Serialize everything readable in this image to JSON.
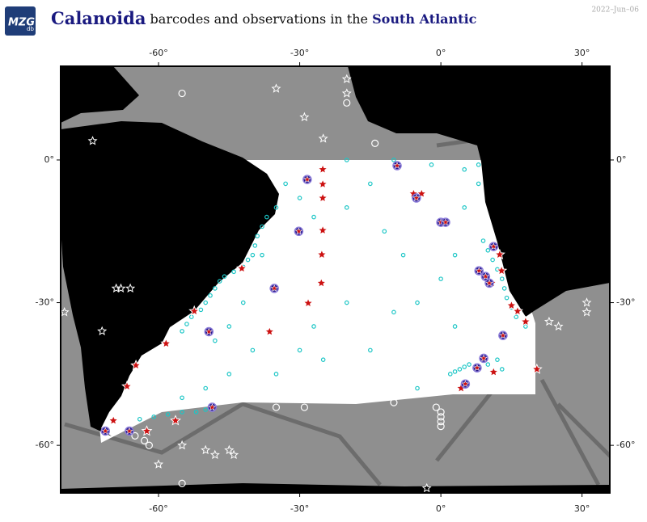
{
  "logo": {
    "main": "MZG",
    "sub": "db"
  },
  "date": "2022–Jun–06",
  "title": {
    "taxon": "Calanoida",
    "text": "barcodes and observations in the",
    "region": "South Atlantic"
  },
  "map": {
    "xlim": [
      -80.8,
      35.9
    ],
    "ylim": [
      -70,
      19.7
    ],
    "xticks": [
      {
        "value": -60,
        "label": "-60°"
      },
      {
        "value": -30,
        "label": "-30°"
      },
      {
        "value": 0,
        "label": "0°"
      },
      {
        "value": 30,
        "label": "30°"
      }
    ],
    "yticks": [
      {
        "value": 0,
        "label": "0°"
      },
      {
        "value": -30,
        "label": "-30°"
      },
      {
        "value": -60,
        "label": "-60°"
      }
    ],
    "point_sets": [
      {
        "shape": "circle",
        "fill": "none",
        "stroke": "#1cc6c6",
        "size": 2.2,
        "points": [
          [
            -37,
            -12
          ],
          [
            -38,
            -14
          ],
          [
            -39,
            -16
          ],
          [
            -39.5,
            -18
          ],
          [
            -40,
            -20
          ],
          [
            -41,
            -21
          ],
          [
            -42,
            -22.5
          ],
          [
            -44,
            -23.5
          ],
          [
            -46,
            -24.5
          ],
          [
            -47,
            -25.5
          ],
          [
            -48,
            -27
          ],
          [
            -49,
            -28.5
          ],
          [
            -50,
            -30
          ],
          [
            -51,
            -31.5
          ],
          [
            -53,
            -33
          ],
          [
            -54,
            -34.5
          ],
          [
            -55,
            -36
          ],
          [
            -33,
            -5
          ],
          [
            -30,
            -8
          ],
          [
            -27,
            -12
          ],
          [
            -20,
            -10
          ],
          [
            -15,
            -5
          ],
          [
            -12,
            -15
          ],
          [
            -8,
            -20
          ],
          [
            -5,
            -30
          ],
          [
            0,
            -25
          ],
          [
            3,
            -35
          ],
          [
            -10,
            -32
          ],
          [
            -20,
            -30
          ],
          [
            -27,
            -35
          ],
          [
            -30,
            -40
          ],
          [
            -35,
            -45
          ],
          [
            -40,
            -40
          ],
          [
            -45,
            -45
          ],
          [
            -50,
            -48
          ],
          [
            -55,
            -50
          ],
          [
            -45,
            -35
          ],
          [
            -42,
            -30
          ],
          [
            -38,
            -20
          ],
          [
            -48,
            -38
          ],
          [
            5,
            -10
          ],
          [
            8,
            -5
          ],
          [
            3,
            -20
          ],
          [
            -15,
            -40
          ],
          [
            -25,
            -42
          ],
          [
            -35,
            -10
          ],
          [
            -5,
            -48
          ],
          [
            2,
            -45
          ],
          [
            3,
            -44.5
          ],
          [
            4,
            -44
          ],
          [
            5,
            -43.5
          ],
          [
            6,
            -43
          ],
          [
            8,
            -44
          ],
          [
            10,
            -43
          ],
          [
            12,
            -42
          ],
          [
            13,
            -44
          ],
          [
            -55,
            -53
          ],
          [
            -58,
            -53.5
          ],
          [
            -61,
            -54
          ],
          [
            -64,
            -54.5
          ],
          [
            -50,
            -52.5
          ],
          [
            -52,
            -53
          ],
          [
            9,
            -17
          ],
          [
            10,
            -19
          ],
          [
            11,
            -21
          ],
          [
            12,
            -23
          ],
          [
            13,
            -25
          ],
          [
            13.5,
            -27
          ],
          [
            14,
            -29
          ],
          [
            15,
            -31
          ],
          [
            16,
            -33
          ],
          [
            18,
            -35
          ],
          [
            -20,
            0
          ],
          [
            -10,
            0
          ],
          [
            -2,
            -1
          ],
          [
            5,
            -2
          ],
          [
            8,
            -1
          ]
        ]
      },
      {
        "shape": "star",
        "fill": "none",
        "stroke": "#ffffff",
        "size": 5,
        "points": [
          [
            -74,
            4
          ],
          [
            -68,
            -27
          ],
          [
            -69,
            -27
          ],
          [
            -66,
            -27
          ],
          [
            -72,
            -36
          ],
          [
            -20,
            17
          ],
          [
            -29,
            9
          ],
          [
            -35,
            15
          ],
          [
            -25,
            4.5
          ],
          [
            -14,
            -3
          ],
          [
            -20,
            14
          ],
          [
            -55,
            -60
          ],
          [
            -50,
            -61
          ],
          [
            -48,
            -62
          ],
          [
            -44,
            -62
          ],
          [
            -45,
            -61
          ],
          [
            -60,
            -64
          ],
          [
            -3,
            -69
          ],
          [
            23,
            -34
          ],
          [
            25,
            -35
          ],
          [
            31,
            -30
          ],
          [
            31,
            -32
          ],
          [
            -80,
            -32
          ],
          [
            19,
            -47
          ]
        ]
      },
      {
        "shape": "circle",
        "fill": "none",
        "stroke": "#ffffff",
        "size": 4,
        "points": [
          [
            -55,
            14
          ],
          [
            -14,
            3.5
          ],
          [
            -20,
            12
          ],
          [
            -35,
            -52
          ],
          [
            -29,
            -52
          ],
          [
            -14,
            -50
          ],
          [
            -10,
            -51
          ],
          [
            -1,
            -52
          ],
          [
            0,
            -53
          ],
          [
            0,
            -54
          ],
          [
            0,
            -55
          ],
          [
            0,
            -56
          ],
          [
            -55,
            -68
          ],
          [
            -65,
            -58
          ],
          [
            -63,
            -59
          ],
          [
            -62,
            -60
          ]
        ]
      },
      {
        "shape": "star",
        "fill": "#cc1111",
        "stroke": "#ffffff",
        "size": 6,
        "points": [
          [
            -25.1,
            -2
          ],
          [
            -25.1,
            -5.1
          ],
          [
            -25.1,
            -8
          ],
          [
            -25.1,
            -14.8
          ],
          [
            -25.3,
            -19.9
          ],
          [
            -25.4,
            -25.9
          ],
          [
            -28.2,
            -30.1
          ],
          [
            -36.4,
            -36.1
          ],
          [
            -42.3,
            -22.8
          ],
          [
            -52.4,
            -31.8
          ],
          [
            -58.4,
            -38.6
          ],
          [
            -64.8,
            -43.2
          ],
          [
            -66.7,
            -47.6
          ],
          [
            -69.6,
            -54.8
          ],
          [
            -56.4,
            -54.8
          ],
          [
            -62.5,
            -57
          ],
          [
            -5.8,
            -7.1
          ],
          [
            -4.1,
            -7.1
          ],
          [
            12.5,
            -19.9
          ],
          [
            12.9,
            -23.3
          ],
          [
            10.8,
            -25.9
          ],
          [
            15,
            -30.6
          ],
          [
            16.3,
            -31.8
          ],
          [
            18,
            -34
          ],
          [
            20.4,
            -44
          ],
          [
            11.2,
            -44.6
          ],
          [
            4.3,
            -48
          ]
        ]
      },
      {
        "shape": "circle-star",
        "fill": "#2a1a8a",
        "stroke": "#8a7ad8",
        "size": 5,
        "points": [
          [
            -28.4,
            -4.1
          ],
          [
            -30.2,
            -15
          ],
          [
            -35.4,
            -27
          ],
          [
            -49.3,
            -36.1
          ],
          [
            -48.6,
            -52
          ],
          [
            -9.3,
            -1.2
          ],
          [
            -5.2,
            -8
          ],
          [
            0,
            -13.1
          ],
          [
            1,
            -13.1
          ],
          [
            11.2,
            -18.2
          ],
          [
            8.1,
            -23.3
          ],
          [
            9.5,
            -24.5
          ],
          [
            10.3,
            -25.9
          ],
          [
            13.2,
            -36.9
          ],
          [
            9.1,
            -41.7
          ],
          [
            7.7,
            -43.7
          ],
          [
            5.2,
            -47.1
          ],
          [
            -66.2,
            -57
          ],
          [
            -71.3,
            -57
          ]
        ]
      }
    ]
  }
}
